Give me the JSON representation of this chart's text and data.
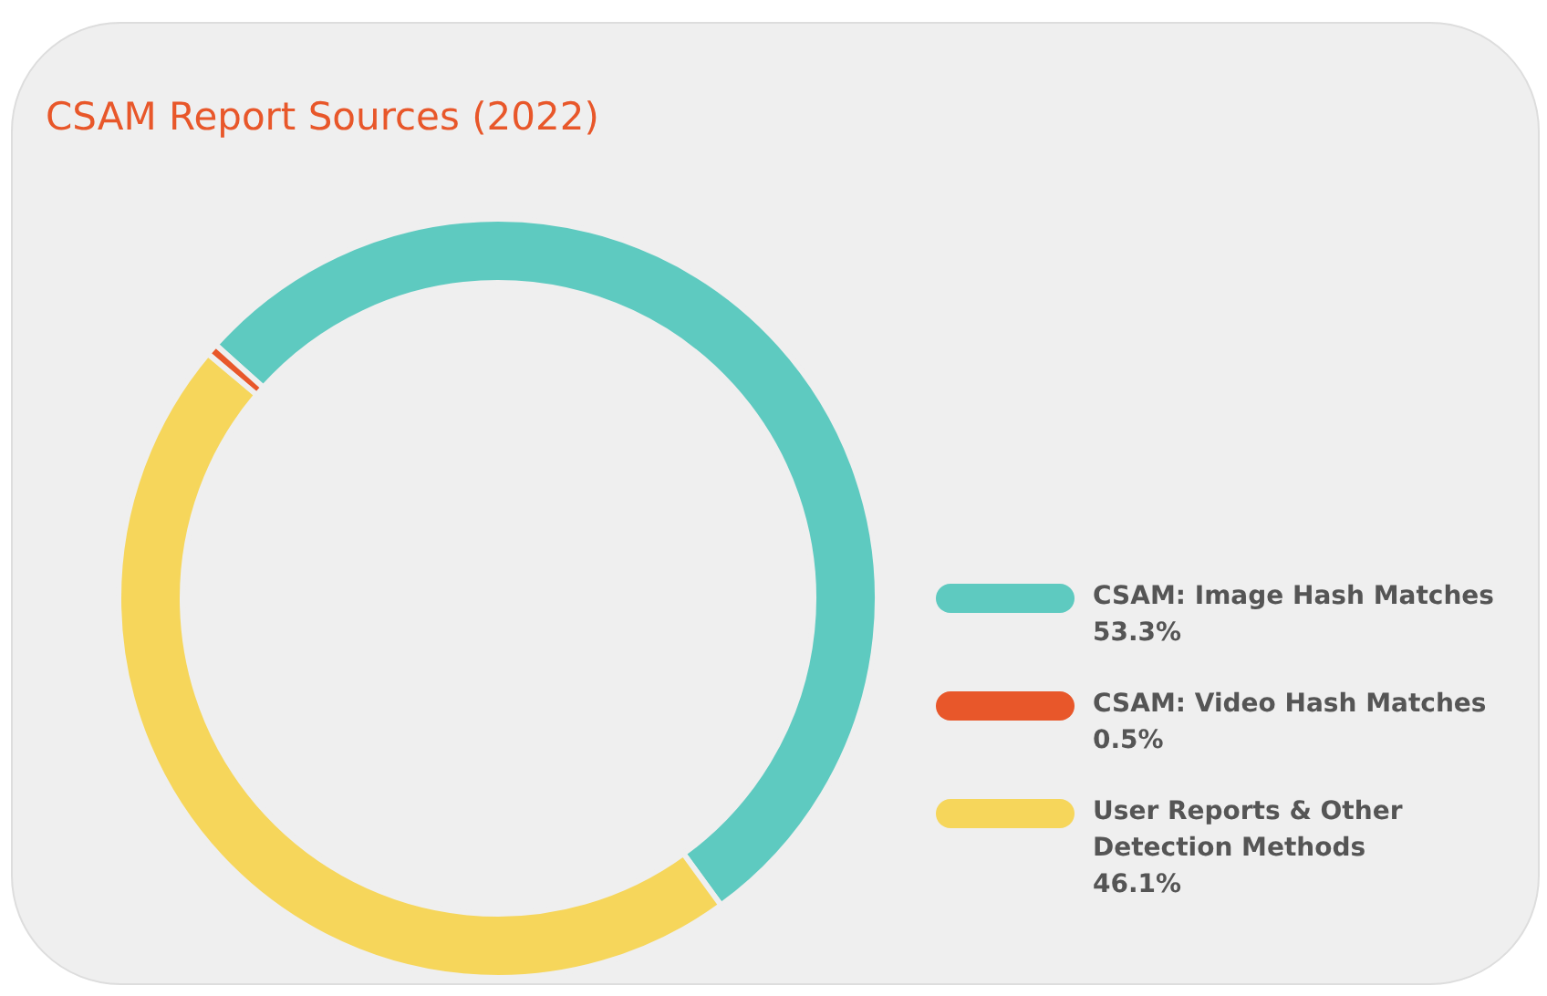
{
  "chart_data": {
    "type": "donut",
    "title": "CSAM Report Sources (2022)",
    "categories": [
      "CSAM: Image Hash Matches",
      "CSAM: Video Hash Matches",
      "User Reports & Other Detection Methods"
    ],
    "values": [
      53.3,
      0.5,
      46.1
    ],
    "colors": [
      "#5ecac0",
      "#e8572a",
      "#f6d65b"
    ],
    "value_labels": [
      "53.3%",
      "0.5%",
      "46.1%"
    ],
    "data_labels": true,
    "legend": "right"
  }
}
